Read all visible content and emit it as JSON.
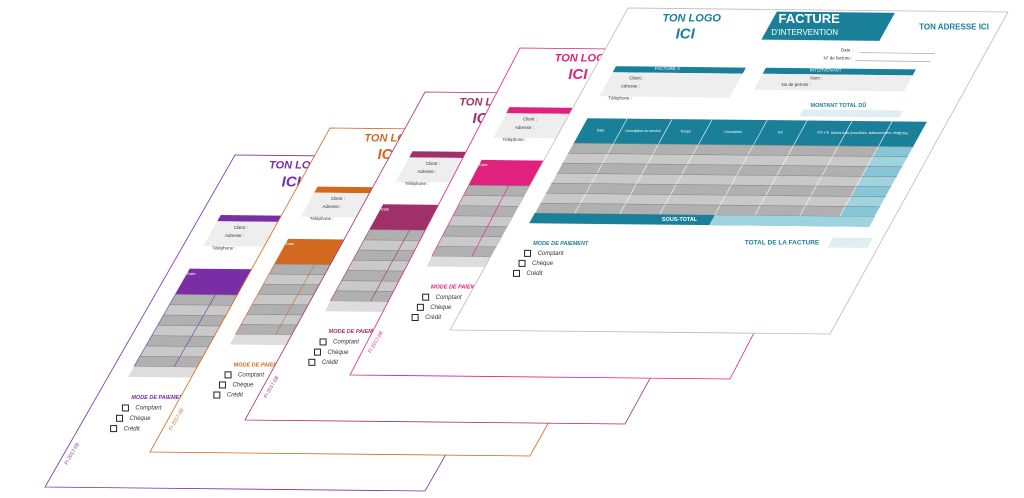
{
  "logo": {
    "line1": "TON LOGO",
    "line2": "ICI"
  },
  "form_code": "FI 2017-08",
  "sheets": [
    {
      "color": "#7a2ea5"
    },
    {
      "color": "#d2691e"
    },
    {
      "color": "#a0306a"
    },
    {
      "color": "#e0227e"
    },
    {
      "color": "#1a7f98"
    }
  ],
  "invoice": {
    "title": "FACTURE",
    "subtitle": "D'INTERVENTION",
    "address": "TON ADRESSE ICI",
    "date_label": "Date :",
    "number_label": "N° de facture :",
    "billed_to": "FACTURÉ À",
    "technician": "INTERVENANT",
    "client": "Client :",
    "address_label": "Adresse :",
    "phone": "Téléphone :",
    "name": "Nom :",
    "permit": "No de permis :",
    "amount_due": "MONTANT TOTAL DÛ",
    "columns": [
      "Date",
      "Description du service",
      "Temps",
      "Honoraires",
      "Km",
      "Km x $",
      "Autres frais (nourriture, stationnement, etc.)",
      "TOTAL"
    ],
    "subtotal": "SOUS-TOTAL",
    "invoice_total": "TOTAL DE LA FACTURE",
    "payment_mode": "MODE DE PAIEMENT",
    "options": [
      "Comptant",
      "Chèque",
      "Crédit"
    ]
  }
}
